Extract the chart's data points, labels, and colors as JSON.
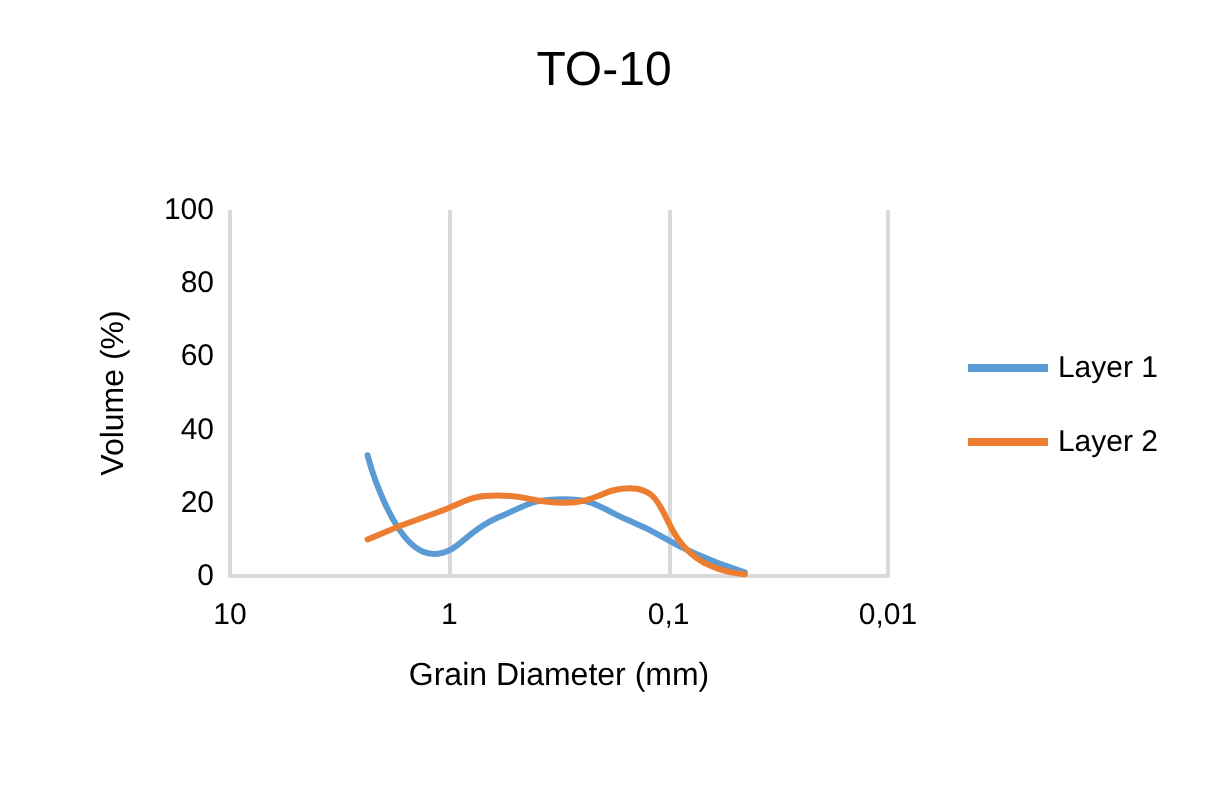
{
  "chart_data": {
    "type": "line",
    "title": "TO-10",
    "xlabel": "Grain Diameter (mm)",
    "ylabel": "Volume (%)",
    "x": [
      2.36,
      1.18,
      0.6,
      0.3,
      0.15,
      0.075,
      0.045
    ],
    "series": [
      {
        "name": "Layer 1",
        "color": "#5b9bd5",
        "values": [
          33,
          6,
          16,
          21,
          15,
          6,
          1
        ]
      },
      {
        "name": "Layer 2",
        "color": "#ed7d31",
        "values": [
          10,
          17,
          22,
          20,
          24,
          5,
          0.5
        ]
      }
    ],
    "log": "x",
    "xlim": [
      10,
      0.01
    ],
    "xticks": [
      {
        "value": 10,
        "label": "10"
      },
      {
        "value": 1,
        "label": "1"
      },
      {
        "value": 0.1,
        "label": "0,1"
      },
      {
        "value": 0.01,
        "label": "0,01"
      }
    ],
    "ylim": [
      0,
      100
    ],
    "yticks": [
      0,
      20,
      40,
      60,
      80,
      100
    ],
    "grid": "x",
    "legend": "right",
    "marker": "none",
    "line_style": "solid"
  }
}
